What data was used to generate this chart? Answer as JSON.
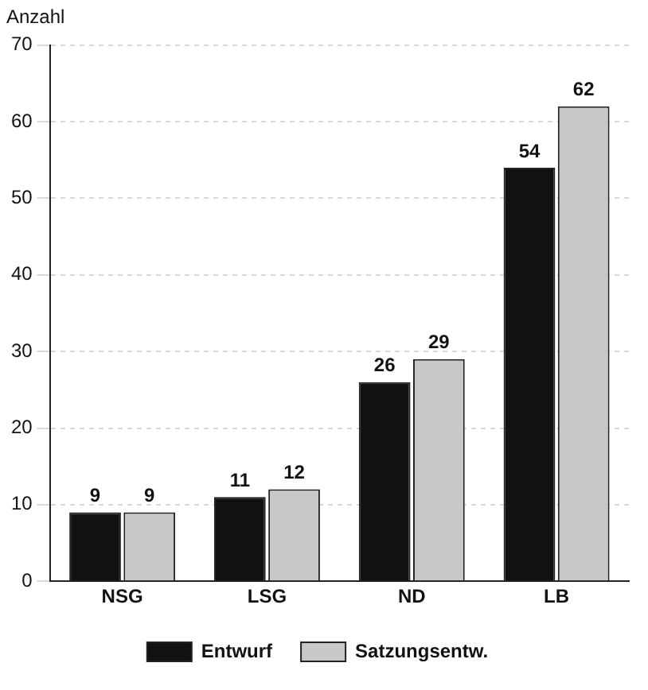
{
  "chart_data": {
    "type": "bar",
    "ylabel": "Anzahl",
    "categories": [
      "NSG",
      "LSG",
      "ND",
      "LB"
    ],
    "series": [
      {
        "name": "Entwurf",
        "color": "#111111",
        "values": [
          9,
          11,
          26,
          54
        ]
      },
      {
        "name": "Satzungsentw.",
        "color": "#c8c8c8",
        "values": [
          9,
          12,
          29,
          62
        ]
      }
    ],
    "ylim": [
      0,
      70
    ],
    "yticks": [
      0,
      10,
      20,
      30,
      40,
      50,
      60,
      70
    ],
    "grid": "y",
    "legend": "bottom",
    "data_labels": true
  }
}
